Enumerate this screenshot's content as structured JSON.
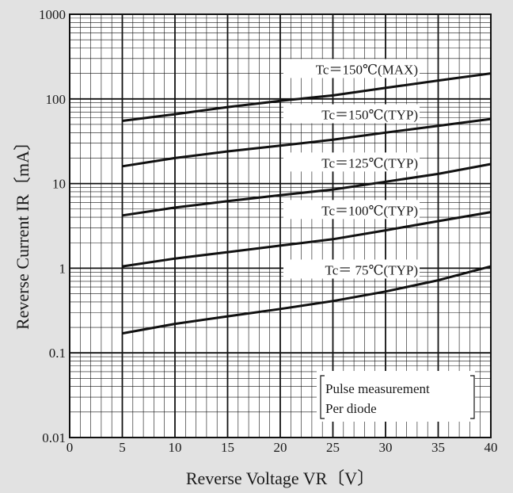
{
  "chart_data": {
    "type": "line",
    "x_scale": "linear",
    "y_scale": "log",
    "xlim": [
      0,
      40
    ],
    "ylim": [
      0.01,
      1000
    ],
    "grid": true,
    "xlabel": "Reverse Voltage  VR〔V〕",
    "ylabel": "Reverse Current  IR〔mA〕",
    "x_ticks": [
      {
        "value": 0,
        "label": "0"
      },
      {
        "value": 5,
        "label": "5"
      },
      {
        "value": 10,
        "label": "10"
      },
      {
        "value": 15,
        "label": "15"
      },
      {
        "value": 20,
        "label": "20"
      },
      {
        "value": 25,
        "label": "25"
      },
      {
        "value": 30,
        "label": "30"
      },
      {
        "value": 35,
        "label": "35"
      },
      {
        "value": 40,
        "label": "40"
      }
    ],
    "y_ticks": [
      {
        "value": 0.01,
        "label": "0.01"
      },
      {
        "value": 0.1,
        "label": "0.1"
      },
      {
        "value": 1,
        "label": "1"
      },
      {
        "value": 10,
        "label": "10"
      },
      {
        "value": 100,
        "label": "100"
      },
      {
        "value": 1000,
        "label": "1000"
      }
    ],
    "series": [
      {
        "name": "Tc＝150℃(MAX)",
        "x": [
          5,
          10,
          15,
          20,
          25,
          30,
          35,
          40
        ],
        "y": [
          55,
          66,
          80,
          95,
          110,
          135,
          165,
          200
        ]
      },
      {
        "name": "Tc＝150℃(TYP)",
        "x": [
          5,
          10,
          15,
          20,
          25,
          30,
          35,
          40
        ],
        "y": [
          16,
          20,
          24,
          28,
          33,
          40,
          48,
          58
        ]
      },
      {
        "name": "Tc＝125℃(TYP)",
        "x": [
          5,
          10,
          15,
          20,
          25,
          30,
          35,
          40
        ],
        "y": [
          4.2,
          5.2,
          6.2,
          7.3,
          8.5,
          10.5,
          13,
          17
        ]
      },
      {
        "name": "Tc＝100℃(TYP)",
        "x": [
          5,
          10,
          15,
          20,
          25,
          30,
          35,
          40
        ],
        "y": [
          1.05,
          1.3,
          1.55,
          1.85,
          2.2,
          2.8,
          3.6,
          4.6
        ]
      },
      {
        "name": "Tc＝  75℃(TYP)",
        "x": [
          5,
          10,
          15,
          20,
          25,
          30,
          35,
          40
        ],
        "y": [
          0.17,
          0.22,
          0.27,
          0.33,
          0.41,
          0.53,
          0.72,
          1.05
        ]
      }
    ],
    "annotations": [
      "Pulse measurement",
      "Per diode"
    ]
  }
}
